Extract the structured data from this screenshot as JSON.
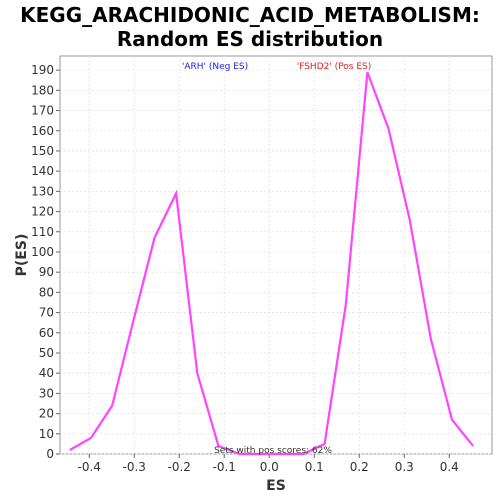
{
  "chart_data": {
    "type": "line",
    "title": "KEGG_ARACHIDONIC_ACID_METABOLISM:",
    "subtitle": "Random ES distribution",
    "xlabel": "ES",
    "ylabel": "P(ES)",
    "xlim": [
      -0.465,
      0.495
    ],
    "ylim": [
      0,
      197
    ],
    "xticks": [
      "-0.4",
      "-0.3",
      "-0.2",
      "-0.1",
      "0.0",
      "0.1",
      "0.2",
      "0.3",
      "0.4"
    ],
    "xtick_values": [
      -0.4,
      -0.3,
      -0.2,
      -0.1,
      0.0,
      0.1,
      0.2,
      0.3,
      0.4
    ],
    "yticks": [
      "0",
      "10",
      "20",
      "30",
      "40",
      "50",
      "60",
      "70",
      "80",
      "90",
      "100",
      "110",
      "120",
      "130",
      "140",
      "150",
      "160",
      "170",
      "180",
      "190"
    ],
    "ytick_values": [
      0,
      10,
      20,
      30,
      40,
      50,
      60,
      70,
      80,
      90,
      100,
      110,
      120,
      130,
      140,
      150,
      160,
      170,
      180,
      190
    ],
    "grid": true,
    "line_color": "#ff44ff",
    "series": [
      {
        "x": [
          -0.443,
          -0.396,
          -0.349,
          -0.302,
          -0.255,
          -0.207,
          -0.16,
          -0.113,
          -0.066,
          -0.019,
          0.029,
          0.076,
          0.123,
          0.17,
          0.218,
          0.265,
          0.312,
          0.359,
          0.406,
          0.453
        ],
        "values": [
          2,
          8,
          24,
          66,
          107,
          129,
          40,
          4,
          0,
          0,
          0,
          0,
          5,
          74,
          189,
          161,
          116,
          57,
          17,
          4
        ]
      }
    ],
    "annotations": [
      {
        "text": "'ARH' (Neg ES)",
        "color": "#2222dd"
      },
      {
        "text": "'FSHD2' (Pos ES)",
        "color": "#dd2222"
      },
      {
        "text": "Sets with pos scores: 62%",
        "color": "#333333"
      }
    ]
  }
}
